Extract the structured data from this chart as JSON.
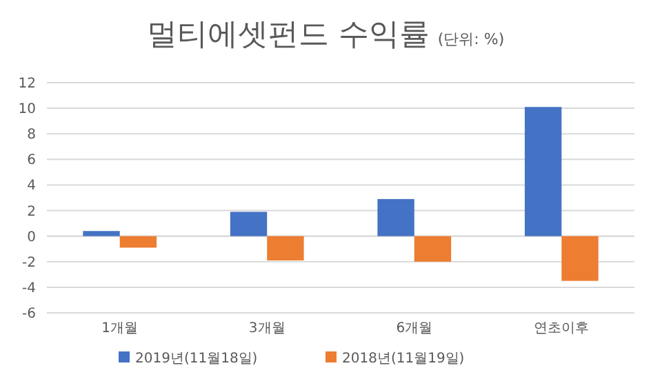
{
  "chart_data": {
    "type": "bar",
    "title": "멀티에셋펀드 수익률",
    "subtitle": "(단위: %)",
    "categories": [
      "1개월",
      "3개월",
      "6개월",
      "연초이후"
    ],
    "series": [
      {
        "name": "2019년(11월18일)",
        "color": "#4472c4",
        "values": [
          0.4,
          1.9,
          2.9,
          10.1
        ]
      },
      {
        "name": "2018년(11월19일)",
        "color": "#ed7d31",
        "values": [
          -0.9,
          -1.9,
          -2.0,
          -3.5
        ]
      }
    ],
    "ylim": [
      -6,
      12
    ],
    "yticks": [
      -6,
      -4,
      -2,
      0,
      2,
      4,
      6,
      8,
      10,
      12
    ],
    "grid": "y",
    "legend": "bottom"
  }
}
